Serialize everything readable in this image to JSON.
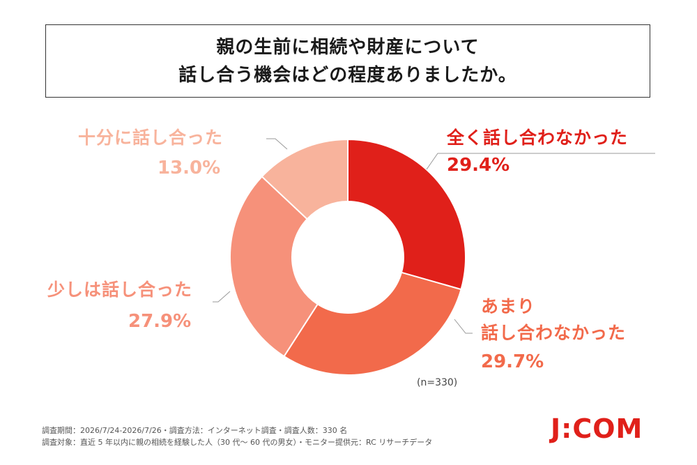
{
  "title": {
    "line1": "親の生前に相続や財産について",
    "line2": "話し合う機会はどの程度ありましたか。"
  },
  "chart_data": {
    "type": "pie",
    "donut": true,
    "categories": [
      "全く話し合わなかった",
      "あまり話し合わなかった",
      "少しは話し合った",
      "十分に話し合った"
    ],
    "values": [
      29.4,
      29.7,
      27.9,
      13.0
    ],
    "value_labels": [
      "29.4%",
      "29.7%",
      "27.9%",
      "13.0%"
    ],
    "colors": [
      "#e0201a",
      "#f26a4b",
      "#f6917a",
      "#f8b39c"
    ],
    "label_lines": [
      [
        "全く話し合わなかった"
      ],
      [
        "あまり",
        "話し合わなかった"
      ],
      [
        "少しは話し合った"
      ],
      [
        "十分に話し合った"
      ]
    ]
  },
  "note": "(n=330)",
  "footer": {
    "line1": "調査期間：2026/7/24-2026/7/26・調査方法：インターネット調査・調査人数：330 名",
    "line2": "調査対象：直近 5 年以内に親の相続を経験した人（30 代～ 60 代の男女）・モニター提供元：RC リサーチデータ"
  },
  "logo_text": "J:COM"
}
